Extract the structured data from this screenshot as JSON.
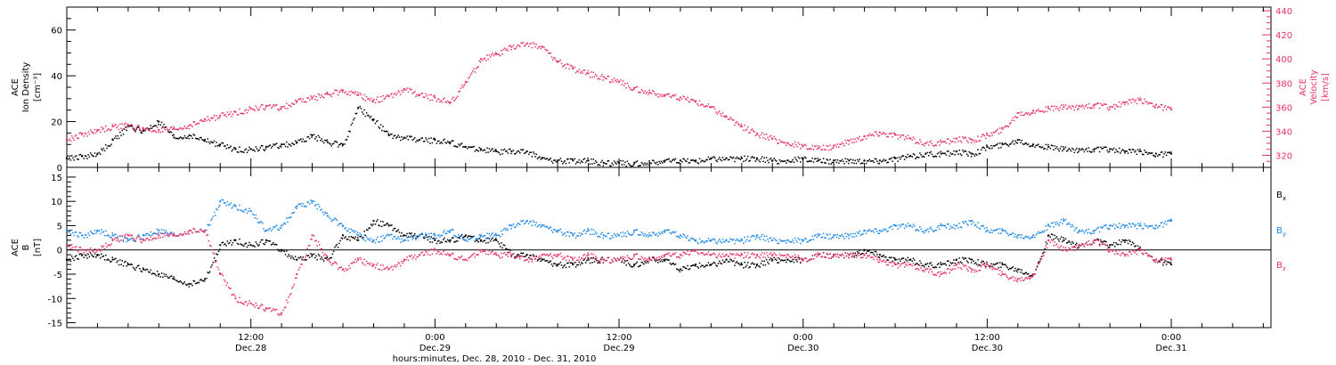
{
  "colors": {
    "black": "#000000",
    "pink": "#e8336a",
    "blue": "#1e88e5"
  },
  "chart_data": [
    {
      "type": "scatter",
      "panel": "top",
      "ylabel_lines": [
        "ACE",
        "Ion Density",
        "[cm⁻³]"
      ],
      "ylim": [
        0,
        70
      ],
      "yticks": [
        0,
        20,
        40,
        60
      ],
      "ylabel_right_lines": [
        "ACE",
        "Velocity",
        "[km/s]"
      ],
      "ylim_right": [
        310,
        443
      ],
      "yticks_right": [
        320,
        340,
        360,
        380,
        400,
        420,
        440
      ],
      "series": [
        {
          "axis": "left",
          "color": "black",
          "x": [
            0,
            1,
            2,
            3,
            4,
            5,
            6,
            7,
            8,
            9,
            10,
            11,
            12,
            13,
            14,
            15,
            16,
            17,
            18,
            19,
            20,
            21,
            22,
            23,
            24,
            25,
            26,
            27,
            28,
            29,
            30,
            31,
            32,
            33,
            34,
            35,
            36,
            37,
            38,
            39,
            40,
            41,
            42,
            43,
            44,
            45,
            46,
            47,
            48,
            49,
            50,
            51,
            52,
            53,
            54,
            55,
            56,
            57,
            58,
            59,
            60,
            61,
            62,
            63,
            64,
            65,
            66,
            67,
            68,
            69,
            70,
            71,
            72
          ],
          "y": [
            4,
            5,
            6,
            12,
            18,
            16,
            20,
            13,
            14,
            12,
            10,
            8,
            8,
            9,
            10,
            11,
            14,
            11,
            10,
            26,
            21,
            14,
            13,
            12,
            12,
            11,
            9,
            8,
            7,
            7,
            7,
            4,
            3,
            3,
            3,
            2,
            2,
            2,
            2,
            3,
            3,
            3,
            4,
            4,
            4,
            4,
            3,
            3,
            4,
            3,
            3,
            3,
            3,
            3,
            4,
            5,
            6,
            6,
            7,
            6,
            9,
            10,
            12,
            10,
            9,
            8,
            8,
            8,
            8,
            7,
            7,
            6,
            6
          ]
        },
        {
          "axis": "right",
          "color": "pink",
          "x": [
            0,
            1,
            2,
            3,
            4,
            5,
            6,
            7,
            8,
            9,
            10,
            11,
            12,
            13,
            14,
            15,
            16,
            17,
            18,
            19,
            20,
            21,
            22,
            23,
            24,
            25,
            26,
            27,
            28,
            29,
            30,
            31,
            32,
            33,
            34,
            35,
            36,
            37,
            38,
            39,
            40,
            41,
            42,
            43,
            44,
            45,
            46,
            47,
            48,
            49,
            50,
            51,
            52,
            53,
            54,
            55,
            56,
            57,
            58,
            59,
            60,
            61,
            62,
            63,
            64,
            65,
            66,
            67,
            68,
            69,
            70,
            71,
            72
          ],
          "y": [
            333,
            338,
            341,
            344,
            345,
            342,
            341,
            342,
            345,
            350,
            353,
            356,
            359,
            361,
            360,
            365,
            368,
            371,
            374,
            370,
            366,
            369,
            375,
            370,
            368,
            364,
            381,
            400,
            404,
            410,
            413,
            410,
            398,
            392,
            388,
            385,
            381,
            376,
            372,
            370,
            368,
            365,
            360,
            352,
            344,
            338,
            334,
            330,
            328,
            326,
            328,
            332,
            336,
            339,
            337,
            334,
            330,
            331,
            334,
            333,
            337,
            342,
            355,
            357,
            359,
            360,
            361,
            362,
            360,
            364,
            366,
            362,
            358
          ]
        }
      ]
    },
    {
      "type": "scatter",
      "panel": "bottom",
      "ylabel_lines": [
        "ACE",
        "B",
        "[nT]"
      ],
      "ylim": [
        -16,
        17
      ],
      "yticks": [
        -15,
        -10,
        -5,
        0,
        5,
        10,
        15
      ],
      "legend": [
        {
          "label": "B",
          "sub": "x",
          "color": "black"
        },
        {
          "label": "B",
          "sub": "y",
          "color": "blue"
        },
        {
          "label": "B",
          "sub": "z",
          "color": "pink"
        }
      ],
      "xticks": [
        {
          "x": 12,
          "line1": "12:00",
          "line2": "Dec.28"
        },
        {
          "x": 24,
          "line1": "0:00",
          "line2": "Dec.29"
        },
        {
          "x": 36,
          "line1": "12:00",
          "line2": "Dec.29"
        },
        {
          "x": 48,
          "line1": "0:00",
          "line2": "Dec.30"
        },
        {
          "x": 60,
          "line1": "12:00",
          "line2": "Dec.30"
        },
        {
          "x": 72,
          "line1": "0:00",
          "line2": "Dec.31"
        }
      ],
      "xlim": [
        0,
        78.5
      ],
      "xlabel": "hours:minutes, Dec. 28, 2010 - Dec. 31, 2010",
      "series": [
        {
          "color": "black",
          "x": [
            0,
            1,
            2,
            3,
            4,
            5,
            6,
            7,
            8,
            9,
            10,
            11,
            12,
            13,
            14,
            15,
            16,
            17,
            18,
            19,
            20,
            21,
            22,
            23,
            24,
            25,
            26,
            27,
            28,
            29,
            30,
            31,
            32,
            33,
            34,
            35,
            36,
            37,
            38,
            39,
            40,
            41,
            42,
            43,
            44,
            45,
            46,
            47,
            48,
            49,
            50,
            51,
            52,
            53,
            54,
            55,
            56,
            57,
            58,
            59,
            60,
            61,
            62,
            63,
            64,
            65,
            66,
            67,
            68,
            69,
            70,
            71,
            72
          ],
          "y": [
            -2,
            -1,
            -1,
            -2,
            -3,
            -4,
            -5,
            -6,
            -7,
            -6,
            1,
            2,
            1,
            2,
            0,
            -2,
            -1,
            -2,
            3,
            2,
            6,
            5,
            3,
            3,
            2,
            2,
            3,
            2,
            2,
            -1,
            -1,
            -2,
            -3,
            -3,
            -2,
            -2,
            -2,
            -3,
            -2,
            -2,
            -4,
            -3,
            -3,
            -2,
            -3,
            -3,
            -2,
            -2,
            -2,
            -1,
            -1,
            -1,
            0,
            -1,
            -2,
            -2,
            -3,
            -3,
            -2,
            -2,
            -3,
            -3,
            -4,
            -5,
            3,
            2,
            1,
            2,
            1,
            2,
            0,
            -2,
            -3
          ]
        },
        {
          "color": "blue",
          "x": [
            0,
            1,
            2,
            3,
            4,
            5,
            6,
            7,
            8,
            9,
            10,
            11,
            12,
            13,
            14,
            15,
            16,
            17,
            18,
            19,
            20,
            21,
            22,
            23,
            24,
            25,
            26,
            27,
            28,
            29,
            30,
            31,
            32,
            33,
            34,
            35,
            36,
            37,
            38,
            39,
            40,
            41,
            42,
            43,
            44,
            45,
            46,
            47,
            48,
            49,
            50,
            51,
            52,
            53,
            54,
            55,
            56,
            57,
            58,
            59,
            60,
            61,
            62,
            63,
            64,
            65,
            66,
            67,
            68,
            69,
            70,
            71,
            72
          ],
          "y": [
            4,
            3,
            4,
            3,
            2,
            3,
            4,
            3,
            4,
            4,
            10,
            9,
            8,
            4,
            5,
            9,
            10,
            7,
            5,
            3,
            2,
            3,
            2,
            3,
            3,
            4,
            2,
            3,
            3,
            5,
            6,
            5,
            4,
            3,
            4,
            3,
            3,
            4,
            3,
            4,
            3,
            2,
            2,
            2,
            2,
            3,
            2,
            2,
            2,
            3,
            3,
            3,
            4,
            4,
            5,
            5,
            4,
            5,
            5,
            6,
            4,
            4,
            3,
            3,
            5,
            6,
            4,
            4,
            5,
            5,
            5,
            5,
            6
          ]
        },
        {
          "color": "pink",
          "x": [
            0,
            1,
            2,
            3,
            4,
            5,
            6,
            7,
            8,
            9,
            10,
            11,
            12,
            13,
            14,
            15,
            16,
            17,
            18,
            19,
            20,
            21,
            22,
            23,
            24,
            25,
            26,
            27,
            28,
            29,
            30,
            31,
            32,
            33,
            34,
            35,
            36,
            37,
            38,
            39,
            40,
            41,
            42,
            43,
            44,
            45,
            46,
            47,
            48,
            49,
            50,
            51,
            52,
            53,
            54,
            55,
            56,
            57,
            58,
            59,
            60,
            61,
            62,
            63,
            64,
            65,
            66,
            67,
            68,
            69,
            70,
            71,
            72
          ],
          "y": [
            1,
            0,
            0,
            2,
            3,
            2,
            3,
            3,
            4,
            4,
            -5,
            -10,
            -11,
            -12,
            -13,
            -5,
            3,
            -2,
            -4,
            -2,
            -3,
            -4,
            -2,
            -1,
            0,
            -1,
            -2,
            0,
            -1,
            -1,
            -2,
            -1,
            -1,
            -2,
            -1,
            -2,
            -2,
            -1,
            -2,
            -1,
            -1,
            0,
            -1,
            -1,
            -1,
            -1,
            -1,
            -1,
            -2,
            -1,
            -1,
            -1,
            -1,
            -2,
            -3,
            -3,
            -4,
            -5,
            -3,
            -4,
            -3,
            -5,
            -6,
            -5,
            2,
            0,
            1,
            2,
            0,
            -1,
            0,
            -2,
            -2
          ]
        }
      ]
    }
  ]
}
